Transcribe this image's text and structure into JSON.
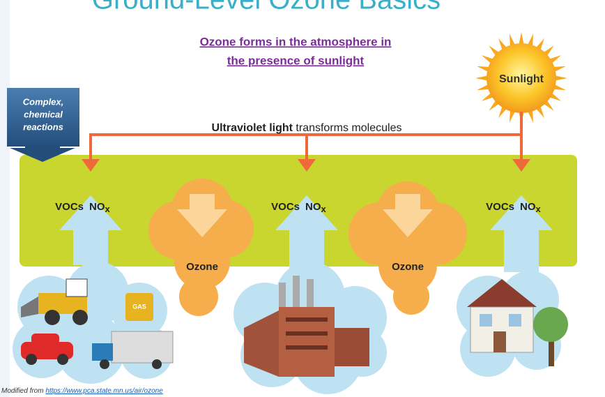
{
  "title": "Ground-Level Ozone Basics",
  "subtitle": [
    "Ozone forms in the atmosphere in",
    "the presence of sunlight"
  ],
  "sun": "Sunlight",
  "callout": [
    "Complex,",
    "chemical",
    "reactions"
  ],
  "uv": {
    "bold": "Ultraviolet light",
    "rest": " transforms molecules"
  },
  "precursors": [
    {
      "voc": "VOCs",
      "no": "NO",
      "sub": "x"
    },
    {
      "voc": "VOCs",
      "no": "NO",
      "sub": "x"
    },
    {
      "voc": "VOCs",
      "no": "NO",
      "sub": "x"
    }
  ],
  "ozone": [
    "Ozone",
    "Ozone"
  ],
  "gas": "GAS",
  "source": {
    "prefix": "Modified from ",
    "link": "https://www.pca.state.mn.us/air/ozone"
  }
}
